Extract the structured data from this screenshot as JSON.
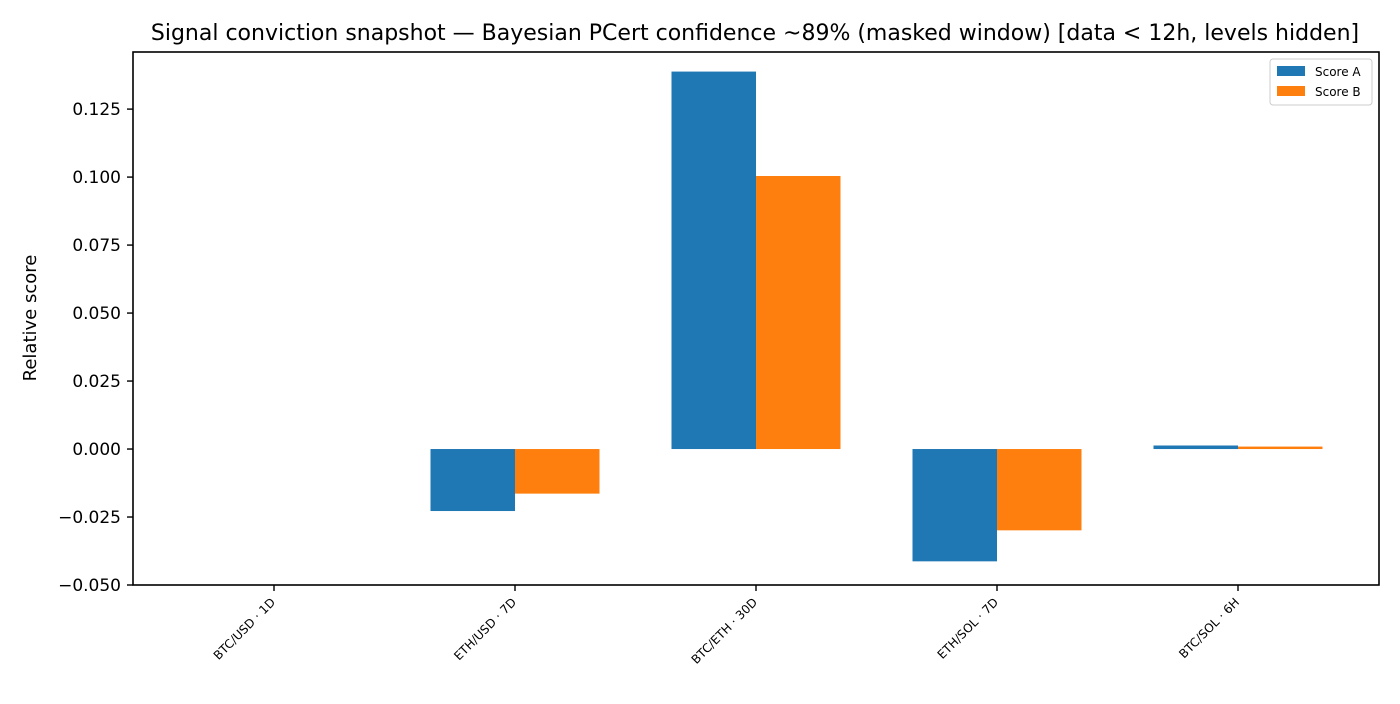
{
  "chart_data": {
    "type": "bar",
    "title": "Signal conviction snapshot — Bayesian PCert confidence ~89% (masked window) [data < 12h, levels hidden]",
    "xlabel": "",
    "ylabel": "Relative score",
    "categories": [
      "BTC/USD · 1D",
      "ETH/USD · 7D",
      "BTC/ETH · 30D",
      "ETH/SOL · 7D",
      "BTC/SOL · 6H"
    ],
    "series": [
      {
        "name": "Score A",
        "color": "#1f77b4",
        "values": [
          0.0,
          -0.0228,
          0.1388,
          -0.0413,
          0.0013
        ]
      },
      {
        "name": "Score B",
        "color": "#ff7f0e",
        "values": [
          0.0,
          -0.0164,
          0.1004,
          -0.0299,
          0.0009
        ]
      }
    ],
    "ylim": [
      -0.05,
      0.146
    ],
    "yticks": [
      "−0.050",
      "−0.025",
      "0.000",
      "0.025",
      "0.050",
      "0.075",
      "0.100",
      "0.125"
    ],
    "ytick_values": [
      -0.05,
      -0.025,
      0,
      0.025,
      0.05,
      0.075,
      0.1,
      0.125
    ],
    "grid": false,
    "legend_position": "top-right"
  }
}
